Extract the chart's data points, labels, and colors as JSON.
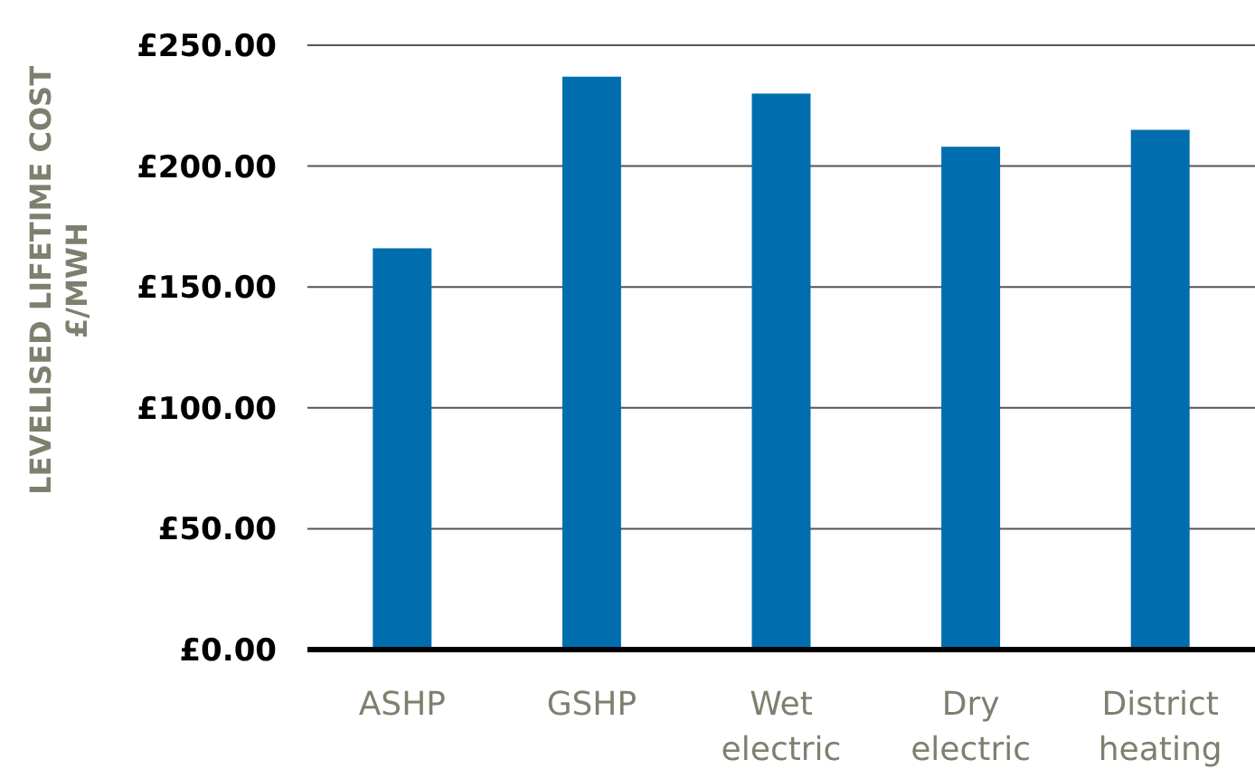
{
  "chart_data": {
    "type": "bar",
    "ylabel": "LEVELISED LIFETIME COST £/MWH",
    "categories": [
      "ASHP",
      "GSHP",
      "Wet electric",
      "Dry electric",
      "District heating"
    ],
    "values": [
      166,
      237,
      230,
      208,
      215
    ],
    "color": "#006eae",
    "ylim": [
      0,
      250
    ],
    "yticks": [
      {
        "value": 0,
        "label": "£0.00"
      },
      {
        "value": 50,
        "label": "£50.00"
      },
      {
        "value": 100,
        "label": "£100.00"
      },
      {
        "value": 150,
        "label": "£150.00"
      },
      {
        "value": 200,
        "label": "£200.00"
      },
      {
        "value": 250,
        "label": "£250.00"
      }
    ],
    "grid": "y"
  }
}
